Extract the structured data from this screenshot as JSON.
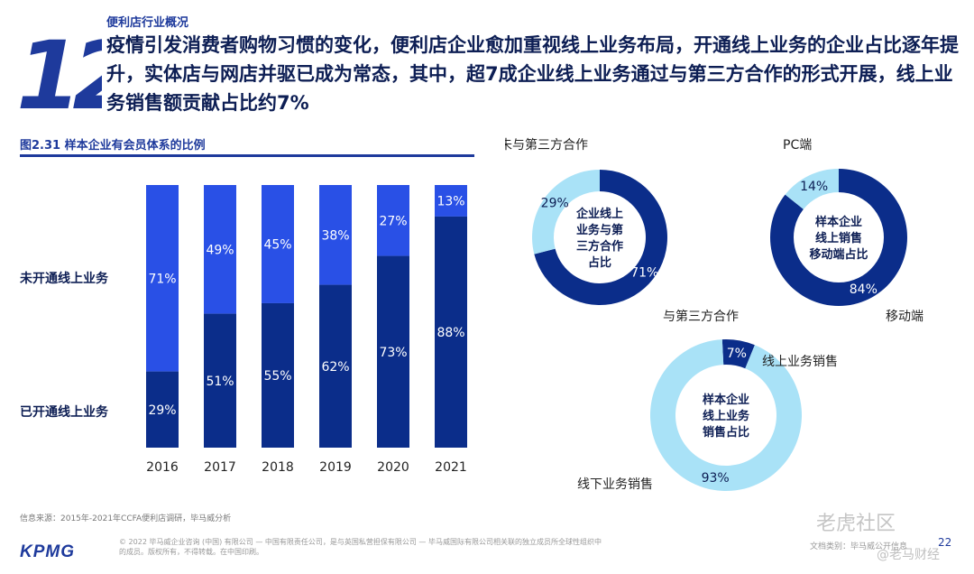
{
  "section_number": "12",
  "category": "便利店行业概况",
  "headline": "疫情引发消费者购物习惯的变化，便利店企业愈加重视线上业务布局，开通线上业务的企业占比逐年提升，实体店与网店并驱已成为常态，其中，超7成企业线上业务通过与第三方合作的形式开展，线上业务销售额贡献占比约7%",
  "figure_title": "图2.31 样本企业有会员体系的比例",
  "row_labels": {
    "top": "未开通线上业务",
    "bottom": "已开通线上业务"
  },
  "colors": {
    "dark": "#0b2d8a",
    "bright": "#2950e6",
    "light": "#a9e2f7",
    "accent": "#1e3a9c"
  },
  "chart_data": [
    {
      "type": "bar",
      "stacked": true,
      "categories": [
        "2016",
        "2017",
        "2018",
        "2019",
        "2020",
        "2021"
      ],
      "series": [
        {
          "name": "已开通线上业务",
          "values": [
            29,
            51,
            55,
            62,
            73,
            88
          ]
        },
        {
          "name": "未开通线上业务",
          "values": [
            71,
            49,
            45,
            38,
            27,
            13
          ]
        }
      ],
      "value_labels": {
        "bottom": [
          "29%",
          "51%",
          "55%",
          "62%",
          "73%",
          "88%"
        ],
        "top": [
          "71%",
          "49%",
          "45%",
          "38%",
          "27%",
          "13%"
        ]
      },
      "ylim": [
        0,
        100
      ]
    },
    {
      "type": "pie",
      "donut": true,
      "center_label": "企业线上业务与第三方合作占比",
      "center_lines": [
        "企业线上",
        "业务与第",
        "三方合作",
        "占比"
      ],
      "slices": [
        {
          "label": "与第三方合作",
          "value": 71,
          "value_label": "71%"
        },
        {
          "label": "未与第三方合作",
          "value": 29,
          "value_label": "29%"
        }
      ]
    },
    {
      "type": "pie",
      "donut": true,
      "center_label": "样本企业线上销售移动端占比",
      "center_lines": [
        "样本企业",
        "线上销售",
        "移动端占比"
      ],
      "slices": [
        {
          "label": "移动端",
          "value": 84,
          "value_label": "84%"
        },
        {
          "label": "PC端",
          "value": 14,
          "value_label": "14%"
        }
      ]
    },
    {
      "type": "pie",
      "donut": true,
      "center_label": "样本企业线上业务销售占比",
      "center_lines": [
        "样本企业",
        "线上业务",
        "销售占比"
      ],
      "slices": [
        {
          "label": "线上业务销售",
          "value": 7,
          "value_label": "7%"
        },
        {
          "label": "线下业务销售",
          "value": 93,
          "value_label": "93%"
        }
      ]
    }
  ],
  "source": "信息来源：2015年-2021年CCFA便利店调研，毕马威分析",
  "logo_text": "KPMG",
  "copyright": "© 2022 毕马威企业咨询 (中国) 有限公司 — 中国有限责任公司，是与英国私营担保有限公司 — 毕马威国际有限公司相关联的独立成员所全球性组织中的成员。版权所有，不得转载。在中国印刷。",
  "doc_info": "文档类别：毕马威公开信息",
  "page_number": "22",
  "watermark_main": "老虎社区",
  "watermark_sub": "@老马财经"
}
